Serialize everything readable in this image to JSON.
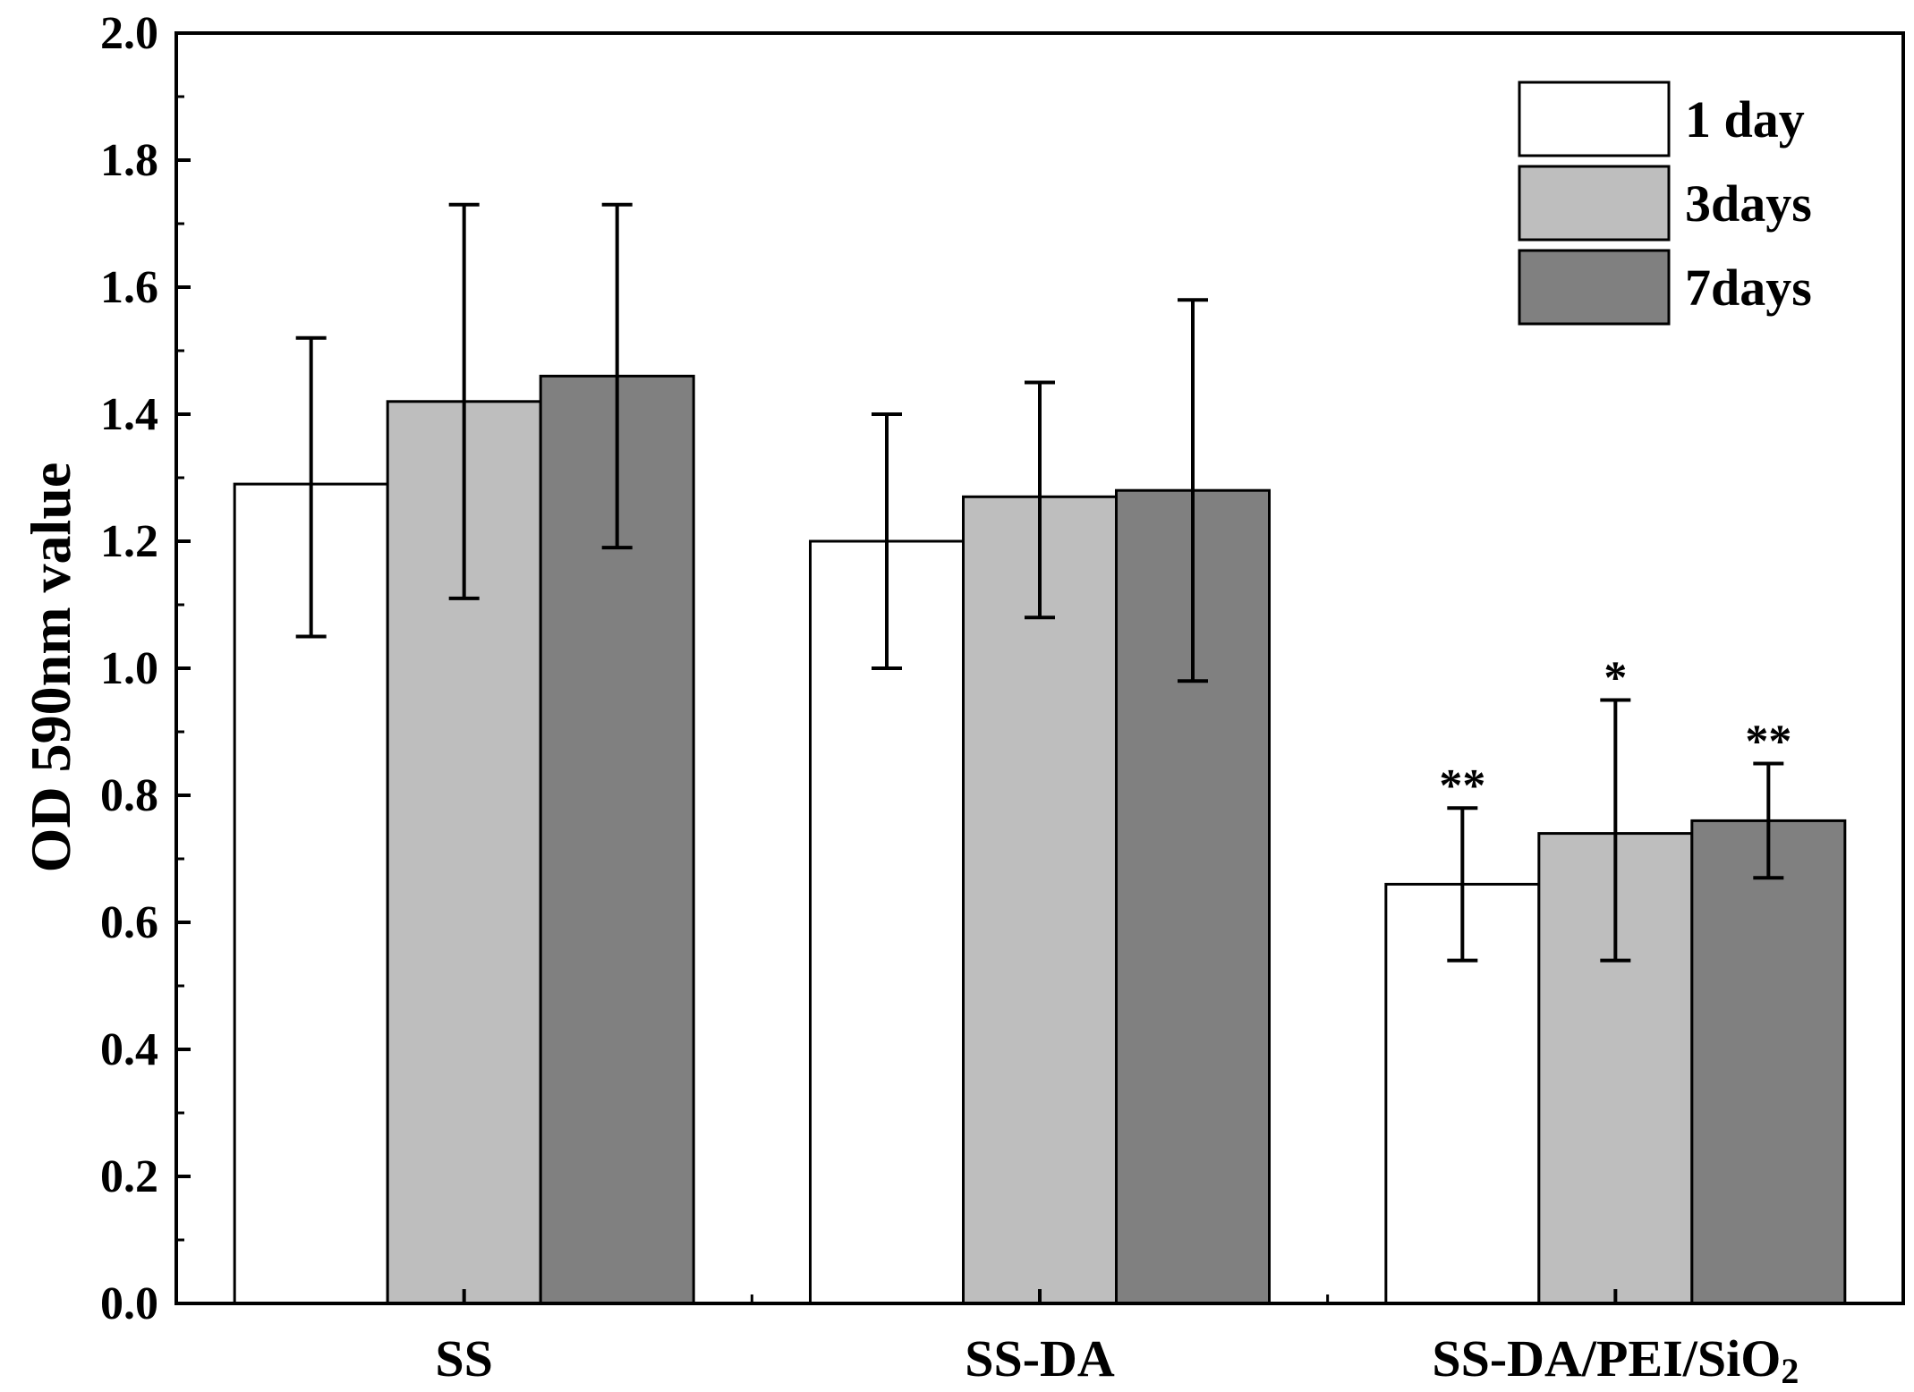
{
  "chart_data": {
    "type": "bar",
    "title": "",
    "xlabel": "",
    "ylabel": "OD 590nm value",
    "ylim": [
      0,
      2.0
    ],
    "yticks": [
      "0.0",
      "0.2",
      "0.4",
      "0.6",
      "0.8",
      "1.0",
      "1.2",
      "1.4",
      "1.6",
      "1.8",
      "2.0"
    ],
    "categories": [
      "SS",
      "SS-DA",
      "SS-DA/PEI/SiO2"
    ],
    "category_labels": [
      {
        "main": "SS",
        "sub": ""
      },
      {
        "main": "SS-DA",
        "sub": ""
      },
      {
        "main": "SS-DA/PEI/SiO",
        "sub": "2"
      }
    ],
    "series": [
      {
        "name": "1 day",
        "color": "#ffffff",
        "values": [
          1.29,
          1.2,
          0.66
        ],
        "error_low": [
          1.05,
          1.0,
          0.54
        ],
        "error_high": [
          1.52,
          1.4,
          0.78
        ]
      },
      {
        "name": "3days",
        "color": "#bebebe",
        "values": [
          1.42,
          1.27,
          0.74
        ],
        "error_low": [
          1.11,
          1.08,
          0.54
        ],
        "error_high": [
          1.73,
          1.45,
          0.95
        ]
      },
      {
        "name": "7days",
        "color": "#808080",
        "values": [
          1.46,
          1.28,
          0.76
        ],
        "error_low": [
          1.19,
          0.98,
          0.67
        ],
        "error_high": [
          1.73,
          1.58,
          0.85
        ]
      }
    ],
    "annotations": [
      {
        "category": 2,
        "series": 0,
        "text": "**"
      },
      {
        "category": 2,
        "series": 1,
        "text": "*"
      },
      {
        "category": 2,
        "series": 2,
        "text": "**"
      }
    ],
    "legend_position": "top-right",
    "grid": false
  }
}
